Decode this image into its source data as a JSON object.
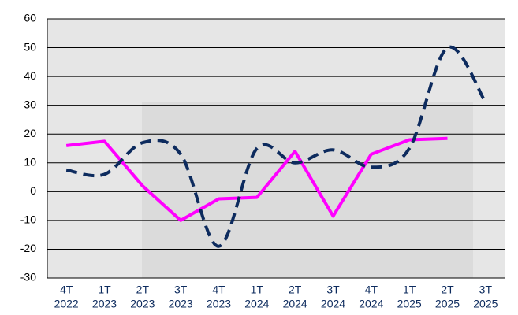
{
  "chart_data": {
    "type": "line",
    "categories": [
      [
        "4T",
        "2022"
      ],
      [
        "1T",
        "2023"
      ],
      [
        "2T",
        "2023"
      ],
      [
        "3T",
        "2023"
      ],
      [
        "4T",
        "2023"
      ],
      [
        "1T",
        "2024"
      ],
      [
        "2T",
        "2024"
      ],
      [
        "3T",
        "2024"
      ],
      [
        "4T",
        "2024"
      ],
      [
        "1T",
        "2025"
      ],
      [
        "2T",
        "2025"
      ],
      [
        "3T",
        "2025"
      ]
    ],
    "series": [
      {
        "color": "#ff00ff",
        "dash": false,
        "values": [
          16,
          17.5,
          2,
          -10,
          -2.5,
          -2,
          14,
          -8.5,
          13,
          18,
          18.5,
          null
        ]
      },
      {
        "color": "#0d2b5e",
        "dash": true,
        "values": [
          7.5,
          6,
          17,
          13,
          -19,
          15,
          10,
          14.5,
          8.5,
          15,
          50,
          31
        ]
      }
    ],
    "ylim": [
      -30,
      60
    ],
    "yticks": [
      -30,
      -20,
      -10,
      0,
      10,
      20,
      30,
      40,
      50,
      60
    ],
    "grid": true
  }
}
